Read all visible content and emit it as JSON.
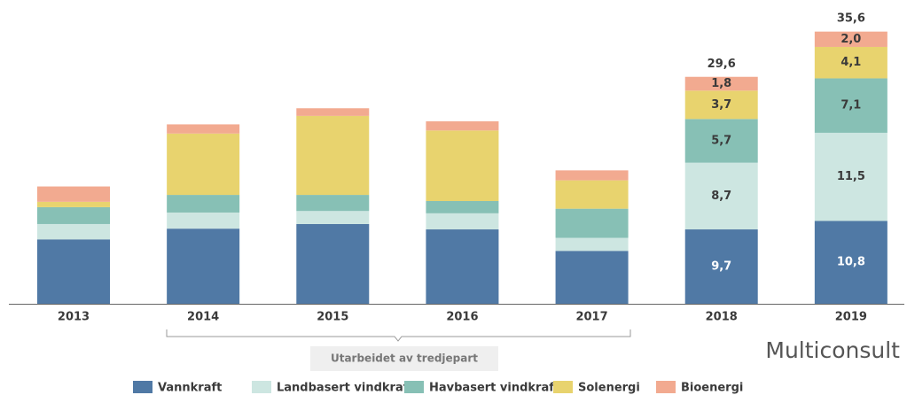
{
  "chart_data": {
    "type": "stacked_bar",
    "categories": [
      "2013",
      "2014",
      "2015",
      "2016",
      "2017",
      "2018",
      "2019"
    ],
    "series": [
      {
        "name": "Vannkraft",
        "color": "#5079a5",
        "values": [
          8.4,
          9.8,
          10.4,
          9.7,
          6.9,
          9.7,
          10.8
        ],
        "value_labels": [
          null,
          null,
          null,
          null,
          null,
          "9,7",
          "10,8"
        ]
      },
      {
        "name": "Landbasert vindkraft",
        "color": "#cde6e1",
        "values": [
          2.0,
          2.1,
          1.7,
          2.1,
          1.7,
          8.7,
          11.5
        ],
        "value_labels": [
          null,
          null,
          null,
          null,
          null,
          "8,7",
          "11,5"
        ]
      },
      {
        "name": "Havbasert vindkraft",
        "color": "#87c0b5",
        "values": [
          2.2,
          2.3,
          2.1,
          1.6,
          3.8,
          5.7,
          7.1
        ],
        "value_labels": [
          null,
          null,
          null,
          null,
          null,
          "5,7",
          "7,1"
        ]
      },
      {
        "name": "Solenergi",
        "color": "#e8d36e",
        "values": [
          0.7,
          8.0,
          10.3,
          9.2,
          3.7,
          3.7,
          4.1
        ],
        "value_labels": [
          null,
          null,
          null,
          null,
          null,
          "3,7",
          "4,1"
        ]
      },
      {
        "name": "Bioenergi",
        "color": "#f2aa90",
        "values": [
          2.0,
          1.2,
          1.0,
          1.2,
          1.3,
          1.8,
          2.0
        ],
        "value_labels": [
          null,
          null,
          null,
          null,
          null,
          "1,8",
          "2,0"
        ]
      }
    ],
    "totals": [
      null,
      null,
      null,
      null,
      null,
      29.6,
      35.6
    ],
    "total_labels": [
      null,
      null,
      null,
      null,
      null,
      "29,6",
      "35,6"
    ],
    "ylim": [
      0,
      36.5
    ],
    "annotation": "Utarbeidet av tredjepart",
    "logo": "Multiconsult"
  }
}
